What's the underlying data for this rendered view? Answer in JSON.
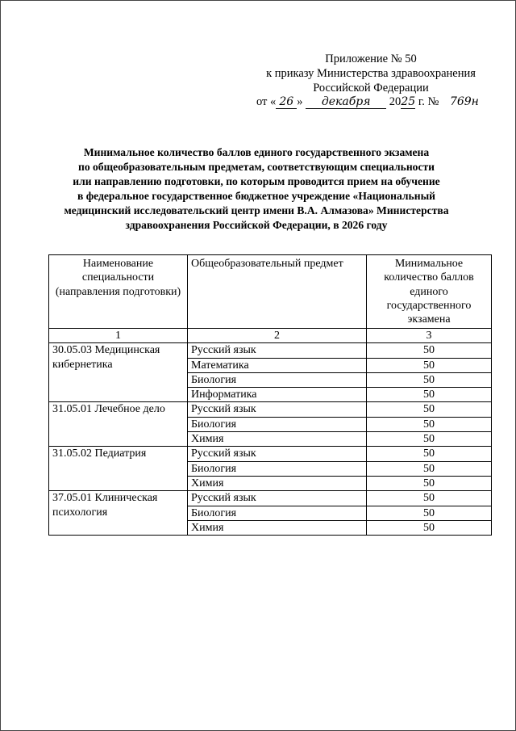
{
  "appendix": {
    "lines": [
      "Приложение № 50",
      "к приказу Министерства здравоохранения",
      "Российской Федерации"
    ],
    "order_prefix": "от «",
    "order_day": "26",
    "order_mid": "»",
    "order_month": "декабря",
    "order_year_prefix": "20",
    "order_year_suffix": "25",
    "order_num_prefix": "г. №",
    "order_number": "769н"
  },
  "title": [
    "Минимальное количество баллов единого государственного экзамена",
    "по общеобразовательным предметам, соответствующим специальности",
    "или направлению подготовки, по которым проводится прием на обучение",
    "в федеральное государственное бюджетное учреждение «Национальный",
    "медицинский исследовательский центр имени В.А. Алмазова» Министерства",
    "здравоохранения Российской Федерации, в 2026 году"
  ],
  "table": {
    "headers": [
      "Наименование специальности (направления подготовки)",
      "Общеобразовательный предмет",
      "Минимальное количество баллов единого государственного экзамена"
    ],
    "col_numbers": [
      "1",
      "2",
      "3"
    ],
    "groups": [
      {
        "specialty": "30.05.03 Медицинская кибернетика",
        "rows": [
          [
            "Русский язык",
            "50"
          ],
          [
            "Математика",
            "50"
          ],
          [
            "Биология",
            "50"
          ],
          [
            "Информатика",
            "50"
          ]
        ]
      },
      {
        "specialty": "31.05.01 Лечебное дело",
        "rows": [
          [
            "Русский язык",
            "50"
          ],
          [
            "Биология",
            "50"
          ],
          [
            "Химия",
            "50"
          ]
        ]
      },
      {
        "specialty": "31.05.02 Педиатрия",
        "rows": [
          [
            "Русский язык",
            "50"
          ],
          [
            "Биология",
            "50"
          ],
          [
            "Химия",
            "50"
          ]
        ]
      },
      {
        "specialty": "37.05.01 Клиническая психология",
        "rows": [
          [
            "Русский язык",
            "50"
          ],
          [
            "Биология",
            "50"
          ],
          [
            "Химия",
            "50"
          ]
        ]
      }
    ]
  }
}
